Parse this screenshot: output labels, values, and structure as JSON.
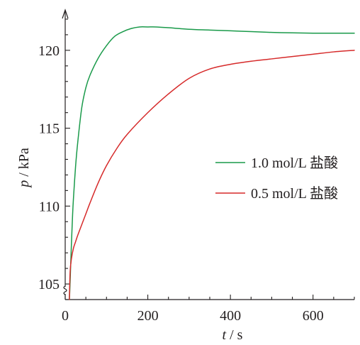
{
  "chart_data": {
    "type": "line",
    "xlabel": "t / s",
    "ylabel": "p / kPa",
    "xlim": [
      0,
      700
    ],
    "ylim": [
      104,
      122.5
    ],
    "x_ticks": [
      0,
      200,
      400,
      600
    ],
    "y_ticks": [
      105,
      110,
      115,
      120
    ],
    "x_minor_step": 50,
    "y_minor_step": 1,
    "y_axis_break": true,
    "grid": false,
    "legend_position": "right",
    "series": [
      {
        "name": "1.0 mol/L 盐酸",
        "color": "#1a9a4a",
        "x": [
          10,
          11,
          13,
          15,
          18,
          20,
          25,
          30,
          40,
          50,
          60,
          80,
          100,
          120,
          140,
          160,
          180,
          200,
          220,
          250,
          300,
          350,
          400,
          450,
          500,
          550,
          600,
          650,
          700
        ],
        "y": [
          104.0,
          104.5,
          106.0,
          107.5,
          109.5,
          110.5,
          112.5,
          114.0,
          116.3,
          117.6,
          118.4,
          119.5,
          120.3,
          120.9,
          121.2,
          121.4,
          121.5,
          121.5,
          121.5,
          121.45,
          121.35,
          121.3,
          121.25,
          121.2,
          121.15,
          121.12,
          121.1,
          121.1,
          121.1
        ]
      },
      {
        "name": "0.5 mol/L 盐酸",
        "color": "#d62a2a",
        "x": [
          10,
          12,
          15,
          20,
          25,
          30,
          40,
          50,
          60,
          80,
          100,
          125,
          150,
          200,
          250,
          300,
          350,
          400,
          450,
          500,
          550,
          600,
          650,
          700
        ],
        "y": [
          104.0,
          105.8,
          106.6,
          107.3,
          107.7,
          108.1,
          108.8,
          109.5,
          110.2,
          111.5,
          112.6,
          113.7,
          114.6,
          116.0,
          117.2,
          118.2,
          118.8,
          119.1,
          119.3,
          119.45,
          119.6,
          119.75,
          119.9,
          120.0
        ]
      }
    ]
  }
}
